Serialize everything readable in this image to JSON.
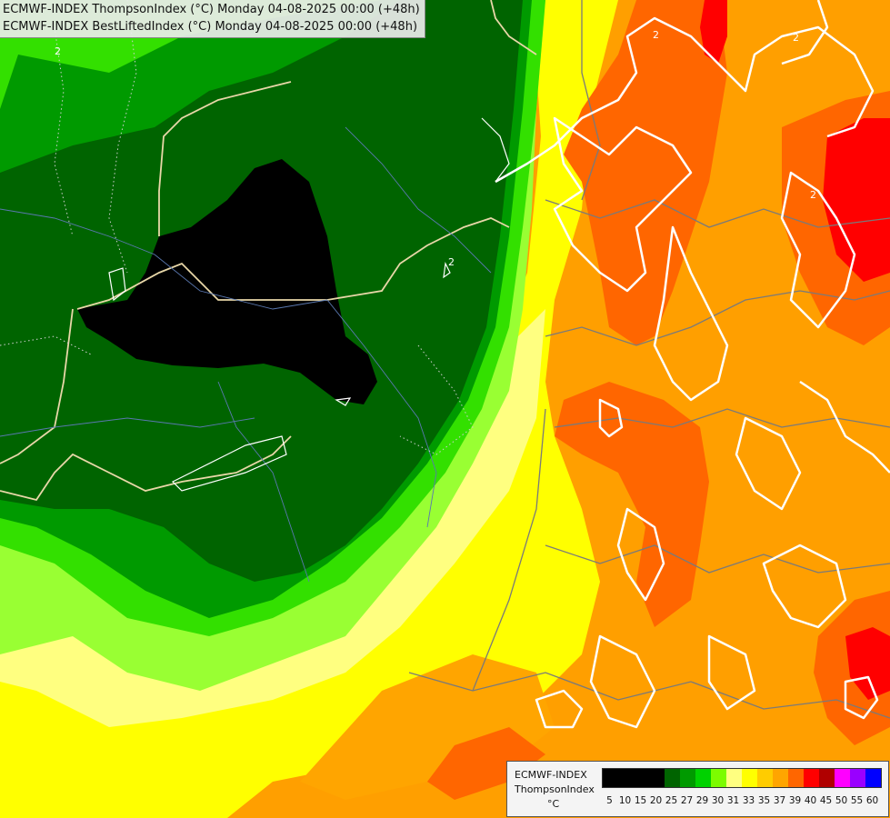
{
  "header": {
    "line1": "ECMWF-INDEX ThompsonIndex (°C) Monday 04-08-2025 00:00 (+48h)",
    "line2": "ECMWF-INDEX BestLiftedIndex (°C) Monday 04-08-2025 00:00 (+48h)"
  },
  "legend": {
    "model": "ECMWF-INDEX",
    "parameter": "ThompsonIndex",
    "unit": "°C",
    "scale": [
      {
        "label": "5",
        "color": "#000000"
      },
      {
        "label": "10",
        "color": "#000000"
      },
      {
        "label": "15",
        "color": "#000000"
      },
      {
        "label": "20",
        "color": "#000000"
      },
      {
        "label": "25",
        "color": "#006400"
      },
      {
        "label": "27",
        "color": "#009a00"
      },
      {
        "label": "29",
        "color": "#00d200"
      },
      {
        "label": "30",
        "color": "#7cfc00"
      },
      {
        "label": "31",
        "color": "#ffff80"
      },
      {
        "label": "33",
        "color": "#ffff00"
      },
      {
        "label": "35",
        "color": "#ffcc00"
      },
      {
        "label": "37",
        "color": "#ffa500"
      },
      {
        "label": "39",
        "color": "#ff6600"
      },
      {
        "label": "40",
        "color": "#ff0000"
      },
      {
        "label": "45",
        "color": "#b00000"
      },
      {
        "label": "50",
        "color": "#ff00ff"
      },
      {
        "label": "55",
        "color": "#9900ff"
      },
      {
        "label": "60",
        "color": "#0000ff"
      }
    ]
  },
  "contour_labels": [
    "2",
    "2",
    "2",
    "2",
    "2"
  ]
}
